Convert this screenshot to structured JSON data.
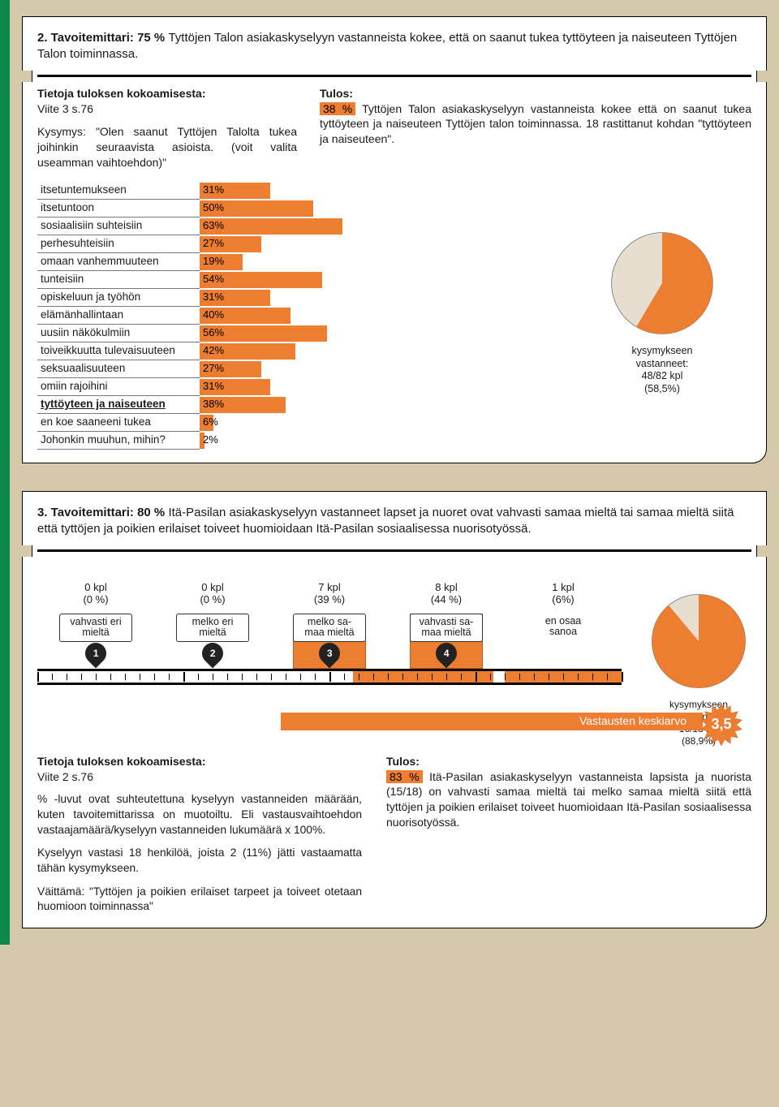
{
  "colors": {
    "accent": "#ed7d31",
    "bg": "#d4c9a8",
    "green": "#0a8a4a"
  },
  "panel1": {
    "title_prefix": "2. Tavoitemittari: 75 % ",
    "title_rest": "Tyttöjen Talon asiakaskyselyyn vastanneista kokee, että on saanut tukea tyttöyteen ja naiseuteen Tyttöjen Talon toiminnassa.",
    "left": {
      "head": "Tietoja tuloksen kokoamisesta:",
      "ref": "Viite 3 s.76",
      "q": "Kysymys: \"Olen saanut Tyttöjen Talolta tukea joihinkin seuraavista asioista. (voit valita useamman vaihtoehdon)\""
    },
    "right": {
      "head": "Tulos:",
      "hl": "38 %",
      "text": " Tyttöjen Talon asiakaskyselyyn vastanneista kokee että on saanut tukea tyttöyteen ja naiseuteen Tyttöjen talon toiminnassa. 18 rastittanut kohdan \"tyttöyteen ja naiseuteen\"."
    },
    "bars": {
      "max_pct": 100,
      "items": [
        {
          "label": "itsetuntemukseen",
          "pct": 31
        },
        {
          "label": "itsetuntoon",
          "pct": 50
        },
        {
          "label": "sosiaalisiin suhteisiin",
          "pct": 63
        },
        {
          "label": "perhesuhteisiin",
          "pct": 27
        },
        {
          "label": "omaan vanhemmuuteen",
          "pct": 19
        },
        {
          "label": "tunteisiin",
          "pct": 54
        },
        {
          "label": "opiskeluun ja työhön",
          "pct": 31
        },
        {
          "label": "elämänhallintaan",
          "pct": 40
        },
        {
          "label": "uusiin näkökulmiin",
          "pct": 56
        },
        {
          "label": "toiveikkuutta tulevaisuuteen",
          "pct": 42
        },
        {
          "label": "seksuaalisuuteen",
          "pct": 27
        },
        {
          "label": "omiin rajoihini",
          "pct": 31
        },
        {
          "label": "tyttöyteen ja naiseuteen",
          "pct": 38,
          "bold": true
        },
        {
          "label": "en koe saaneeni tukea",
          "pct": 6
        },
        {
          "label": "Johonkin muuhun, mihin?",
          "pct": 2
        }
      ]
    },
    "pie": {
      "slice_pct": 58.5,
      "caption_l1": "kysymykseen",
      "caption_l2": "vastanneet:",
      "caption_l3": "48/82 kpl",
      "caption_l4": "(58,5%)",
      "fill": "#ed7d31",
      "rest": "#e8ded0"
    }
  },
  "panel2": {
    "title_prefix": "3. Tavoitemittari: 80 % ",
    "title_rest": "Itä-Pasilan asiakaskyselyyn vastanneet lapset ja nuoret ovat vahvasti samaa mieltä tai samaa mieltä siitä että tyttöjen ja poikien erilaiset toiveet huomioidaan Itä-Pasilan sosiaalisessa nuorisotyössä.",
    "scale": {
      "items": [
        {
          "count": "0 kpl",
          "pct": "(0 %)",
          "label_l1": "vahvasti eri",
          "label_l2": "mieltä",
          "num": 1,
          "h": 0
        },
        {
          "count": "0 kpl",
          "pct": "(0 %)",
          "label_l1": "melko eri",
          "label_l2": "mieltä",
          "num": 2,
          "h": 0
        },
        {
          "count": "7 kpl",
          "pct": "(39 %)",
          "label_l1": "melko sa-",
          "label_l2": "maa mieltä",
          "num": 3,
          "h": 60
        },
        {
          "count": "8 kpl",
          "pct": "(44 %)",
          "label_l1": "vahvasti sa-",
          "label_l2": "maa mieltä",
          "num": 4,
          "h": 68
        },
        {
          "count": "1 kpl",
          "pct": "(6%)",
          "label_l1": "en osaa",
          "label_l2": "sanoa",
          "num": 5,
          "noframe": true,
          "nomarker": true,
          "h": 0
        }
      ],
      "avg_label": "Vastausten keskiarvo",
      "avg_value": "3,5",
      "filled_segments": [
        {
          "from": 0.54,
          "to": 0.78
        },
        {
          "from": 0.8,
          "to": 1.0
        }
      ]
    },
    "pie": {
      "slice_pct": 88.9,
      "caption_l1": "kysymykseen",
      "caption_l2": "vastanneet:",
      "caption_l3": "16/18 kpl",
      "caption_l4": "(88,9%)",
      "fill": "#ed7d31",
      "rest": "#e8ded0"
    },
    "left": {
      "head": "Tietoja tuloksen kokoamisesta:",
      "ref": "Viite 2 s.76",
      "p1": "% -luvut ovat suhteutettuna kyselyyn vastanneiden määrään, kuten tavoitemittarissa on muotoiltu. Eli vastausvaihtoehdon vastaajamäärä/kyselyyn vastanneiden lukumäärä x 100%.",
      "p2": "Kyselyyn vastasi 18 henkilöä, joista 2 (11%) jätti vastaamatta tähän kysymykseen.",
      "p3": "Väittämä: \"Tyttöjen ja poikien erilaiset tarpeet ja toiveet otetaan huomioon toiminnassa\""
    },
    "right": {
      "head": "Tulos:",
      "hl": "83 %",
      "text": " Itä-Pasilan asiakaskyselyyn vastanneista lapsista ja nuorista (15/18) on vahvasti samaa mieltä tai melko samaa mieltä siitä että tyttöjen ja poikien erilaiset toiveet huomioidaan Itä-Pasilan sosiaalisessa nuorisotyössä."
    }
  }
}
